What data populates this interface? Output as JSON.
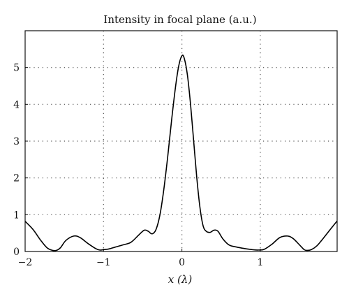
{
  "chart_data": {
    "type": "line",
    "title": "Intensity in focal plane (a.u.)",
    "xlabel": "x (λ)",
    "ylabel": "",
    "xlim": [
      -2,
      1.98
    ],
    "ylim": [
      0,
      6
    ],
    "xticks": [
      -2,
      -1,
      0,
      1
    ],
    "xtick_labels": [
      "−2",
      "−1",
      "0",
      "1"
    ],
    "yticks": [
      0,
      1,
      2,
      3,
      4,
      5
    ],
    "ytick_labels": [
      "0",
      "1",
      "2",
      "3",
      "4",
      "5"
    ],
    "grid": true,
    "series": [
      {
        "x": [
          -2.0,
          -1.9,
          -1.8,
          -1.72,
          -1.65,
          -1.6,
          -1.55,
          -1.48,
          -1.38,
          -1.3,
          -1.2,
          -1.1,
          -1.05,
          -1.0,
          -0.93,
          -0.85,
          -0.75,
          -0.65,
          -0.55,
          -0.48,
          -0.43,
          -0.38,
          -0.33,
          -0.28,
          -0.23,
          -0.18,
          -0.13,
          -0.08,
          -0.04,
          0.0,
          0.03,
          0.07,
          0.11,
          0.15,
          0.19,
          0.23,
          0.27,
          0.31,
          0.36,
          0.41,
          0.46,
          0.52,
          0.6,
          0.7,
          0.8,
          0.9,
          0.97,
          1.05,
          1.15,
          1.25,
          1.35,
          1.42,
          1.5,
          1.56,
          1.6,
          1.65,
          1.72,
          1.8,
          1.9,
          1.98
        ],
        "y": [
          0.82,
          0.6,
          0.3,
          0.1,
          0.03,
          0.03,
          0.1,
          0.3,
          0.42,
          0.38,
          0.22,
          0.08,
          0.04,
          0.05,
          0.07,
          0.12,
          0.18,
          0.25,
          0.45,
          0.58,
          0.55,
          0.48,
          0.6,
          1.0,
          1.7,
          2.6,
          3.6,
          4.5,
          5.05,
          5.32,
          5.25,
          4.8,
          4.0,
          3.0,
          2.0,
          1.2,
          0.7,
          0.55,
          0.52,
          0.58,
          0.55,
          0.35,
          0.18,
          0.12,
          0.08,
          0.05,
          0.04,
          0.06,
          0.2,
          0.38,
          0.42,
          0.35,
          0.18,
          0.05,
          0.03,
          0.05,
          0.15,
          0.35,
          0.62,
          0.83
        ]
      }
    ]
  }
}
